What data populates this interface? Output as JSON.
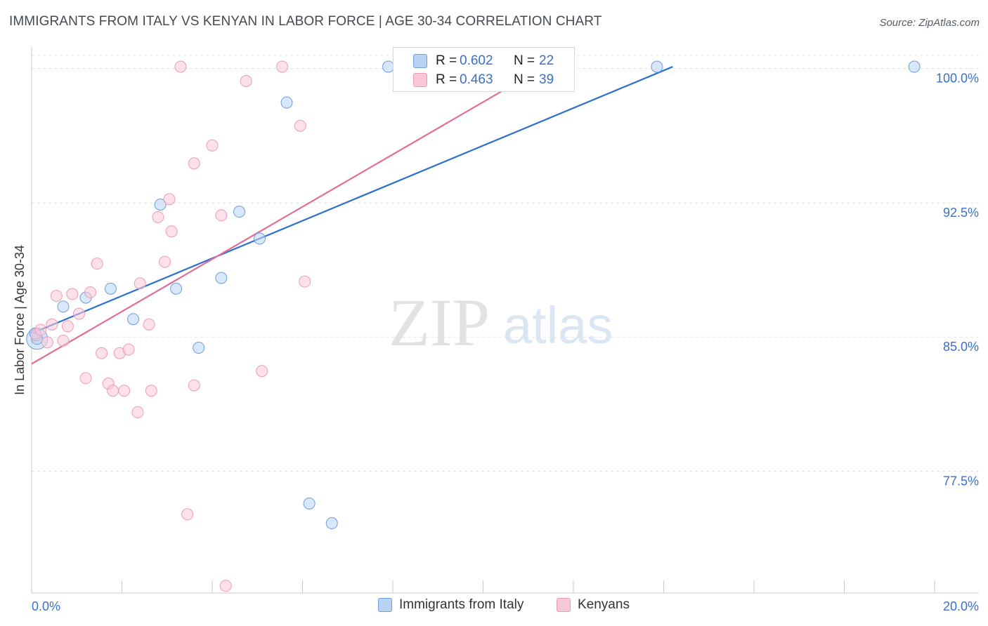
{
  "title": "IMMIGRANTS FROM ITALY VS KENYAN IN LABOR FORCE | AGE 30-34 CORRELATION CHART",
  "source": "Source: ZipAtlas.com",
  "watermark": {
    "zip": "ZIP",
    "atlas": "atlas"
  },
  "stats": [
    {
      "r_label": "R =",
      "r_value": "0.602",
      "n_label": "N =",
      "n_value": "22"
    },
    {
      "r_label": "R =",
      "r_value": "0.463",
      "n_label": "N =",
      "n_value": "39"
    }
  ],
  "colors": {
    "italy_fill": "#b9d3f5",
    "italy_stroke": "#6d9ce0",
    "italy_line": "#2a6fd1",
    "kenyan_fill": "#f9c8d7",
    "kenyan_stroke": "#ee9bb6",
    "kenyan_line": "#e36d96",
    "tick_label": "#3a70c6",
    "grid": "#dfe1e4"
  },
  "chart_data": {
    "type": "scatter",
    "xlabel": "",
    "ylabel": "In Labor Force | Age 30-34",
    "xlim": [
      0,
      20
    ],
    "ylim": [
      70.7,
      101.2
    ],
    "x_tick_labels": [
      {
        "value": 0,
        "label": "0.0%"
      },
      {
        "value": 20,
        "label": "20.0%"
      }
    ],
    "y_ticks": [
      {
        "value": 77.5,
        "label": "77.5%"
      },
      {
        "value": 85.0,
        "label": "85.0%"
      },
      {
        "value": 92.5,
        "label": "92.5%"
      },
      {
        "value": 100.0,
        "label": "100.0%"
      }
    ],
    "grid": "horizontal dashed",
    "legend_position": "bottom-center",
    "series": [
      {
        "name": "Immigrants from Italy",
        "r": 0.602,
        "n": 22,
        "points": [
          [
            0.12,
            84.9
          ],
          [
            0.7,
            86.7
          ],
          [
            1.2,
            87.2
          ],
          [
            1.75,
            87.7
          ],
          [
            2.25,
            86.0
          ],
          [
            2.85,
            92.4
          ],
          [
            3.2,
            87.7
          ],
          [
            3.7,
            84.4
          ],
          [
            4.2,
            88.3
          ],
          [
            4.6,
            92.0
          ],
          [
            5.05,
            90.5
          ],
          [
            5.65,
            98.1
          ],
          [
            6.15,
            75.7
          ],
          [
            6.65,
            74.6
          ],
          [
            7.9,
            100.1
          ],
          [
            8.3,
            100.1
          ],
          [
            8.9,
            100.1
          ],
          [
            9.3,
            100.1
          ],
          [
            10.0,
            100.1
          ],
          [
            13.85,
            100.1
          ],
          [
            19.55,
            100.1
          ],
          [
            0.08,
            85.2
          ]
        ],
        "trend": [
          [
            0,
            85.2
          ],
          [
            14.2,
            100.1
          ]
        ]
      },
      {
        "name": "Kenyans",
        "r": 0.463,
        "n": 39,
        "points": [
          [
            0.1,
            85.1
          ],
          [
            0.2,
            85.4
          ],
          [
            0.35,
            84.7
          ],
          [
            0.45,
            85.7
          ],
          [
            0.55,
            87.3
          ],
          [
            0.7,
            84.8
          ],
          [
            0.8,
            85.6
          ],
          [
            0.9,
            87.4
          ],
          [
            1.05,
            86.3
          ],
          [
            1.2,
            82.7
          ],
          [
            1.3,
            87.5
          ],
          [
            1.45,
            89.1
          ],
          [
            1.55,
            84.1
          ],
          [
            1.7,
            82.4
          ],
          [
            1.8,
            82.0
          ],
          [
            1.95,
            84.1
          ],
          [
            2.05,
            82.0
          ],
          [
            2.15,
            84.3
          ],
          [
            2.35,
            80.8
          ],
          [
            2.4,
            88.0
          ],
          [
            2.6,
            85.7
          ],
          [
            2.65,
            82.0
          ],
          [
            2.8,
            91.7
          ],
          [
            2.95,
            89.2
          ],
          [
            3.05,
            92.7
          ],
          [
            3.1,
            90.9
          ],
          [
            3.3,
            100.1
          ],
          [
            3.45,
            75.1
          ],
          [
            3.6,
            82.3
          ],
          [
            3.6,
            94.7
          ],
          [
            4.0,
            95.7
          ],
          [
            4.2,
            91.8
          ],
          [
            4.3,
            71.1
          ],
          [
            4.75,
            99.3
          ],
          [
            5.1,
            83.1
          ],
          [
            5.55,
            100.1
          ],
          [
            5.95,
            96.8
          ],
          [
            6.05,
            88.1
          ],
          [
            10.25,
            100.1
          ]
        ],
        "trend": [
          [
            0,
            83.5
          ],
          [
            11.35,
            100.1
          ]
        ]
      }
    ]
  },
  "legend": [
    {
      "label": "Immigrants from Italy"
    },
    {
      "label": "Kenyans"
    }
  ]
}
